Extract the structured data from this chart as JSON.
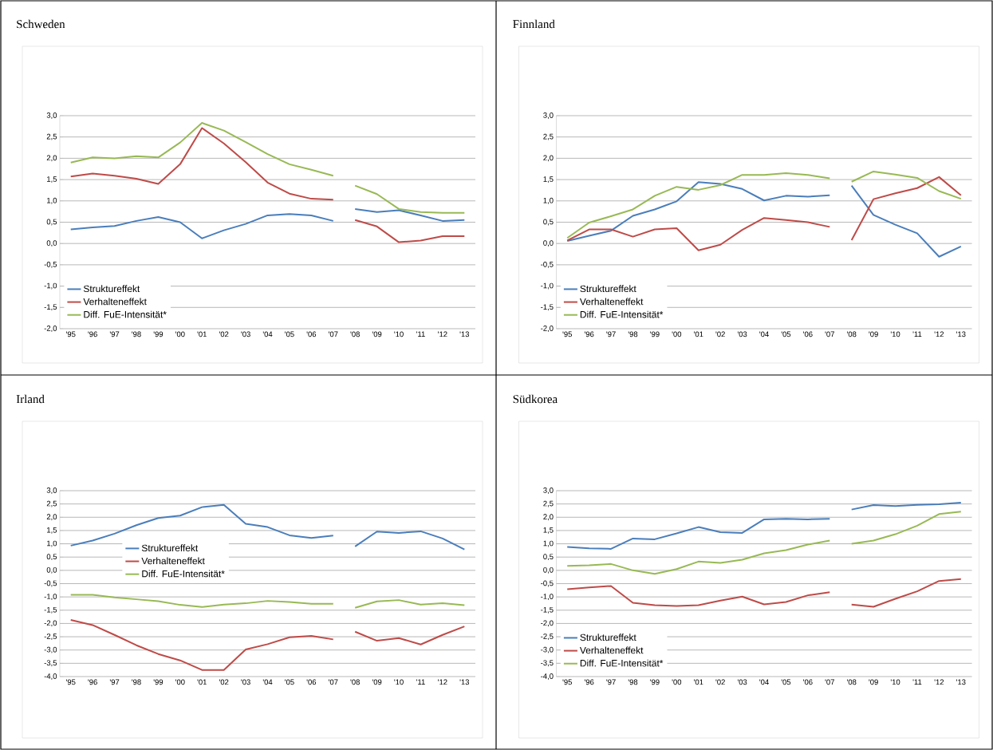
{
  "chart_data": [
    {
      "type": "line",
      "title": "Schweden",
      "categories": [
        "'95",
        "'96",
        "'97",
        "'98",
        "'99",
        "'00",
        "'01",
        "'02",
        "'03",
        "'04",
        "'05",
        "'06",
        "'07",
        "'08",
        "'09",
        "'10",
        "'11",
        "'12",
        "'13"
      ],
      "ylim": [
        -2,
        3
      ],
      "yticks": [
        {
          "value": -2,
          "label": "-2,0"
        },
        {
          "value": -1.5,
          "label": "-1,5"
        },
        {
          "value": -1,
          "label": "-1,0"
        },
        {
          "value": -0.5,
          "label": "-0,5"
        },
        {
          "value": 0,
          "label": "0,0"
        },
        {
          "value": 0.5,
          "label": "0,5"
        },
        {
          "value": 1,
          "label": "1,0"
        },
        {
          "value": 1.5,
          "label": "1,5"
        },
        {
          "value": 2,
          "label": "2,0"
        },
        {
          "value": 2.5,
          "label": "2,5"
        },
        {
          "value": 3,
          "label": "3,0"
        }
      ],
      "grid": "y",
      "legend": "bottom left",
      "marker": "none",
      "series": [
        {
          "name": "Struktureffekt",
          "color": "#4a7ebb",
          "values": [
            0.33,
            0.38,
            0.41,
            0.53,
            0.62,
            0.5,
            0.12,
            0.31,
            0.46,
            0.66,
            0.69,
            0.66,
            0.53,
            null,
            null,
            null,
            null,
            null,
            null
          ]
        },
        {
          "name": "Verhalteneffekt",
          "color": "#be4b48",
          "values": [
            1.57,
            1.64,
            1.59,
            1.52,
            1.4,
            1.86,
            2.71,
            2.35,
            1.91,
            1.43,
            1.17,
            1.05,
            1.03,
            null,
            null,
            null,
            null,
            null,
            null
          ]
        },
        {
          "name": "Diff. FuE-Intensität*",
          "color": "#98b954",
          "values": [
            1.9,
            2.02,
            2.0,
            2.05,
            2.02,
            2.37,
            2.83,
            2.65,
            2.38,
            2.1,
            1.86,
            1.73,
            1.59,
            null,
            null,
            null,
            null,
            null,
            null
          ]
        },
        {
          "color": "#4a7ebb",
          "values": [
            null,
            null,
            null,
            null,
            null,
            null,
            null,
            null,
            null,
            null,
            null,
            null,
            null,
            0.81,
            0.74,
            0.78,
            0.66,
            0.53,
            0.55
          ]
        },
        {
          "color": "#be4b48",
          "values": [
            null,
            null,
            null,
            null,
            null,
            null,
            null,
            null,
            null,
            null,
            null,
            null,
            null,
            0.55,
            0.4,
            0.03,
            0.07,
            0.17,
            0.17
          ]
        },
        {
          "color": "#98b954",
          "values": [
            null,
            null,
            null,
            null,
            null,
            null,
            null,
            null,
            null,
            null,
            null,
            null,
            null,
            1.36,
            1.16,
            0.81,
            0.74,
            0.72,
            0.72
          ]
        }
      ]
    },
    {
      "type": "line",
      "title": "Finnland",
      "categories": [
        "'95",
        "'96",
        "'97",
        "'98",
        "'99",
        "'00",
        "'01",
        "'02",
        "'03",
        "'04",
        "'05",
        "'06",
        "'07",
        "'08",
        "'09",
        "'10",
        "'11",
        "'12",
        "'13"
      ],
      "ylim": [
        -2,
        3
      ],
      "yticks": [
        {
          "value": -2,
          "label": "-2,0"
        },
        {
          "value": -1.5,
          "label": "-1,5"
        },
        {
          "value": -1,
          "label": "-1,0"
        },
        {
          "value": -0.5,
          "label": "-0,5"
        },
        {
          "value": 0,
          "label": "0,0"
        },
        {
          "value": 0.5,
          "label": "0,5"
        },
        {
          "value": 1,
          "label": "1,0"
        },
        {
          "value": 1.5,
          "label": "1,5"
        },
        {
          "value": 2,
          "label": "2,0"
        },
        {
          "value": 2.5,
          "label": "2,5"
        },
        {
          "value": 3,
          "label": "3,0"
        }
      ],
      "grid": "y",
      "legend": "bottom left",
      "marker": "none",
      "series": [
        {
          "name": "Struktureffekt",
          "color": "#4a7ebb",
          "values": [
            0.06,
            0.18,
            0.3,
            0.65,
            0.8,
            0.99,
            1.44,
            1.4,
            1.28,
            1.01,
            1.12,
            1.1,
            1.13,
            null,
            null,
            null,
            null,
            null,
            null
          ]
        },
        {
          "name": "Verhalteneffekt",
          "color": "#be4b48",
          "values": [
            0.07,
            0.33,
            0.33,
            0.16,
            0.33,
            0.36,
            -0.16,
            -0.03,
            0.32,
            0.6,
            0.55,
            0.5,
            0.39,
            null,
            null,
            null,
            null,
            null,
            null
          ]
        },
        {
          "name": "Diff. FuE-Intensität*",
          "color": "#98b954",
          "values": [
            0.13,
            0.49,
            0.64,
            0.8,
            1.12,
            1.33,
            1.26,
            1.37,
            1.61,
            1.61,
            1.65,
            1.61,
            1.53,
            null,
            null,
            null,
            null,
            null,
            null
          ]
        },
        {
          "color": "#4a7ebb",
          "values": [
            null,
            null,
            null,
            null,
            null,
            null,
            null,
            null,
            null,
            null,
            null,
            null,
            null,
            1.36,
            0.67,
            0.44,
            0.24,
            -0.31,
            -0.07
          ]
        },
        {
          "color": "#be4b48",
          "values": [
            null,
            null,
            null,
            null,
            null,
            null,
            null,
            null,
            null,
            null,
            null,
            null,
            null,
            0.08,
            1.04,
            1.18,
            1.3,
            1.56,
            1.13
          ]
        },
        {
          "color": "#98b954",
          "values": [
            null,
            null,
            null,
            null,
            null,
            null,
            null,
            null,
            null,
            null,
            null,
            null,
            null,
            1.45,
            1.69,
            1.62,
            1.54,
            1.23,
            1.05
          ]
        }
      ]
    },
    {
      "type": "line",
      "title": "Irland",
      "categories": [
        "'95",
        "'96",
        "'97",
        "'98",
        "'99",
        "'00",
        "'01",
        "'02",
        "'03",
        "'04",
        "'05",
        "'06",
        "'07",
        "'08",
        "'09",
        "'10",
        "'11",
        "'12",
        "'13"
      ],
      "ylim": [
        -4,
        3
      ],
      "yticks": [
        {
          "value": -4,
          "label": "-4,0"
        },
        {
          "value": -3.5,
          "label": "-3,5"
        },
        {
          "value": -3,
          "label": "-3,0"
        },
        {
          "value": -2.5,
          "label": "-2,5"
        },
        {
          "value": -2,
          "label": "-2,0"
        },
        {
          "value": -1.5,
          "label": "-1,5"
        },
        {
          "value": -1,
          "label": "-1,0"
        },
        {
          "value": -0.5,
          "label": "-0,5"
        },
        {
          "value": 0,
          "label": "0,0"
        },
        {
          "value": 0.5,
          "label": "0,5"
        },
        {
          "value": 1,
          "label": "1,0"
        },
        {
          "value": 1.5,
          "label": "1,5"
        },
        {
          "value": 2,
          "label": "2,0"
        },
        {
          "value": 2.5,
          "label": "2,5"
        },
        {
          "value": 3,
          "label": "3,0"
        }
      ],
      "grid": "y",
      "legend": "left",
      "marker": "none",
      "series": [
        {
          "name": "Struktureffekt",
          "color": "#4a7ebb",
          "values": [
            0.93,
            1.12,
            1.38,
            1.7,
            1.97,
            2.06,
            2.38,
            2.47,
            1.75,
            1.63,
            1.32,
            1.22,
            1.31,
            null,
            null,
            null,
            null,
            null,
            null
          ]
        },
        {
          "name": "Verhalteneffekt",
          "color": "#be4b48",
          "values": [
            -1.87,
            -2.06,
            -2.43,
            -2.82,
            -3.15,
            -3.39,
            -3.75,
            -3.75,
            -2.98,
            -2.78,
            -2.52,
            -2.47,
            -2.6,
            null,
            null,
            null,
            null,
            null,
            null
          ]
        },
        {
          "name": "Diff. FuE-Intensität*",
          "color": "#98b954",
          "values": [
            -0.92,
            -0.92,
            -1.02,
            -1.09,
            -1.16,
            -1.3,
            -1.38,
            -1.29,
            -1.24,
            -1.15,
            -1.19,
            -1.26,
            -1.26,
            null,
            null,
            null,
            null,
            null,
            null
          ]
        },
        {
          "color": "#4a7ebb",
          "values": [
            null,
            null,
            null,
            null,
            null,
            null,
            null,
            null,
            null,
            null,
            null,
            null,
            null,
            0.9,
            1.46,
            1.41,
            1.47,
            1.2,
            0.79
          ]
        },
        {
          "color": "#be4b48",
          "values": [
            null,
            null,
            null,
            null,
            null,
            null,
            null,
            null,
            null,
            null,
            null,
            null,
            null,
            -2.31,
            -2.65,
            -2.55,
            -2.79,
            -2.43,
            -2.11
          ]
        },
        {
          "color": "#98b954",
          "values": [
            null,
            null,
            null,
            null,
            null,
            null,
            null,
            null,
            null,
            null,
            null,
            null,
            null,
            -1.41,
            -1.17,
            -1.12,
            -1.29,
            -1.24,
            -1.31
          ]
        }
      ]
    },
    {
      "type": "line",
      "title": "Südkorea",
      "categories": [
        "'95",
        "'96",
        "'97",
        "'98",
        "'99",
        "'00",
        "'01",
        "'02",
        "'03",
        "'04",
        "'05",
        "'06",
        "'07",
        "'08",
        "'09",
        "'10",
        "'11",
        "'12",
        "'13"
      ],
      "ylim": [
        -4,
        3
      ],
      "yticks": [
        {
          "value": -4,
          "label": "-4,0"
        },
        {
          "value": -3.5,
          "label": "-3,5"
        },
        {
          "value": -3,
          "label": "-3,0"
        },
        {
          "value": -2.5,
          "label": "-2,5"
        },
        {
          "value": -2,
          "label": "-2,0"
        },
        {
          "value": -1.5,
          "label": "-1,5"
        },
        {
          "value": -1,
          "label": "-1,0"
        },
        {
          "value": -0.5,
          "label": "-0,5"
        },
        {
          "value": 0,
          "label": "0,0"
        },
        {
          "value": 0.5,
          "label": "0,5"
        },
        {
          "value": 1,
          "label": "1,0"
        },
        {
          "value": 1.5,
          "label": "1,5"
        },
        {
          "value": 2,
          "label": "2,0"
        },
        {
          "value": 2.5,
          "label": "2,5"
        },
        {
          "value": 3,
          "label": "3,0"
        }
      ],
      "grid": "y",
      "legend": "bottom left",
      "marker": "none",
      "series": [
        {
          "name": "Struktureffekt",
          "color": "#4a7ebb",
          "values": [
            0.88,
            0.83,
            0.81,
            1.2,
            1.17,
            1.39,
            1.63,
            1.44,
            1.41,
            1.92,
            1.94,
            1.92,
            1.94,
            null,
            null,
            null,
            null,
            null,
            null
          ]
        },
        {
          "name": "Verhalteneffekt",
          "color": "#be4b48",
          "values": [
            -0.71,
            -0.64,
            -0.59,
            -1.22,
            -1.31,
            -1.34,
            -1.31,
            -1.14,
            -0.99,
            -1.28,
            -1.19,
            -0.94,
            -0.82,
            null,
            null,
            null,
            null,
            null,
            null
          ]
        },
        {
          "name": "Diff. FuE-Intensität*",
          "color": "#98b954",
          "values": [
            0.17,
            0.19,
            0.24,
            0.0,
            -0.13,
            0.05,
            0.33,
            0.28,
            0.4,
            0.64,
            0.76,
            0.97,
            1.12,
            null,
            null,
            null,
            null,
            null,
            null
          ]
        },
        {
          "color": "#4a7ebb",
          "values": [
            null,
            null,
            null,
            null,
            null,
            null,
            null,
            null,
            null,
            null,
            null,
            null,
            null,
            2.29,
            2.46,
            2.42,
            2.47,
            2.49,
            2.55
          ]
        },
        {
          "color": "#be4b48",
          "values": [
            null,
            null,
            null,
            null,
            null,
            null,
            null,
            null,
            null,
            null,
            null,
            null,
            null,
            -1.29,
            -1.37,
            -1.07,
            -0.79,
            -0.4,
            -0.33
          ]
        },
        {
          "color": "#98b954",
          "values": [
            null,
            null,
            null,
            null,
            null,
            null,
            null,
            null,
            null,
            null,
            null,
            null,
            null,
            1.0,
            1.12,
            1.36,
            1.68,
            2.12,
            2.21
          ]
        }
      ]
    }
  ]
}
